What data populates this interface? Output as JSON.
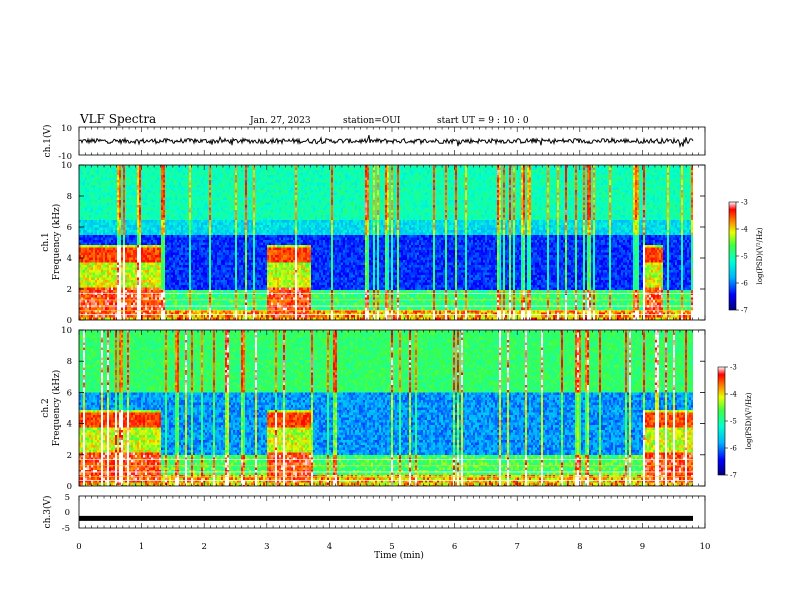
{
  "header": {
    "title": "VLF Spectra",
    "date": "Jan. 27, 2023",
    "station": "station=OUI",
    "start": "start  UT =   9 : 10 : 0"
  },
  "chart_data": [
    {
      "type": "line",
      "id": "ch1",
      "ylabel": "ch.1(V)",
      "ylim": [
        -10,
        10
      ],
      "yticks": [
        "10",
        "-10"
      ],
      "description_series": "noisy waveform centred near 0 V",
      "xlim": [
        0,
        10
      ]
    },
    {
      "type": "heatmap",
      "id": "ch1-spec",
      "ylabel_line1": "ch.1",
      "ylabel_line2": "Frequency (kHz)",
      "ylim": [
        0,
        10
      ],
      "yticks": [
        "10",
        "8",
        "6",
        "4",
        "2",
        "0"
      ],
      "xlim": [
        0,
        10
      ],
      "colorbar": {
        "label": "log(PSD)(V²/Hz)",
        "ticks": [
          "-3",
          "-4",
          "-5",
          "-6",
          "-7"
        ],
        "range": [
          -7,
          -3
        ]
      },
      "bursts": [
        [
          0.0,
          1.3
        ],
        [
          3.0,
          3.7
        ],
        [
          9.0,
          9.3
        ]
      ]
    },
    {
      "type": "heatmap",
      "id": "ch2-spec",
      "ylabel_line1": "ch.2",
      "ylabel_line2": "Frequency (kHz)",
      "ylim": [
        0,
        10
      ],
      "yticks": [
        "10",
        "8",
        "6",
        "4",
        "2",
        "0"
      ],
      "xlim": [
        0,
        10
      ],
      "colorbar": {
        "label": "log(PSD)(V²/Hz)",
        "ticks": [
          "-3",
          "-4",
          "-5",
          "-6",
          "-7"
        ],
        "range": [
          -7,
          -3
        ]
      },
      "bursts": [
        [
          0.0,
          1.3
        ],
        [
          3.0,
          3.7
        ],
        [
          9.0,
          9.8
        ]
      ]
    },
    {
      "type": "line",
      "id": "ch3",
      "ylabel": "ch.3(V)",
      "ylim": [
        -5,
        5
      ],
      "yticks": [
        "5",
        "0",
        "-5"
      ],
      "constant_value": -2,
      "xlim": [
        0,
        10
      ],
      "xlabel": "Time (min)",
      "xticks": [
        "0",
        "1",
        "2",
        "3",
        "4",
        "5",
        "6",
        "7",
        "8",
        "9",
        "10"
      ]
    }
  ]
}
